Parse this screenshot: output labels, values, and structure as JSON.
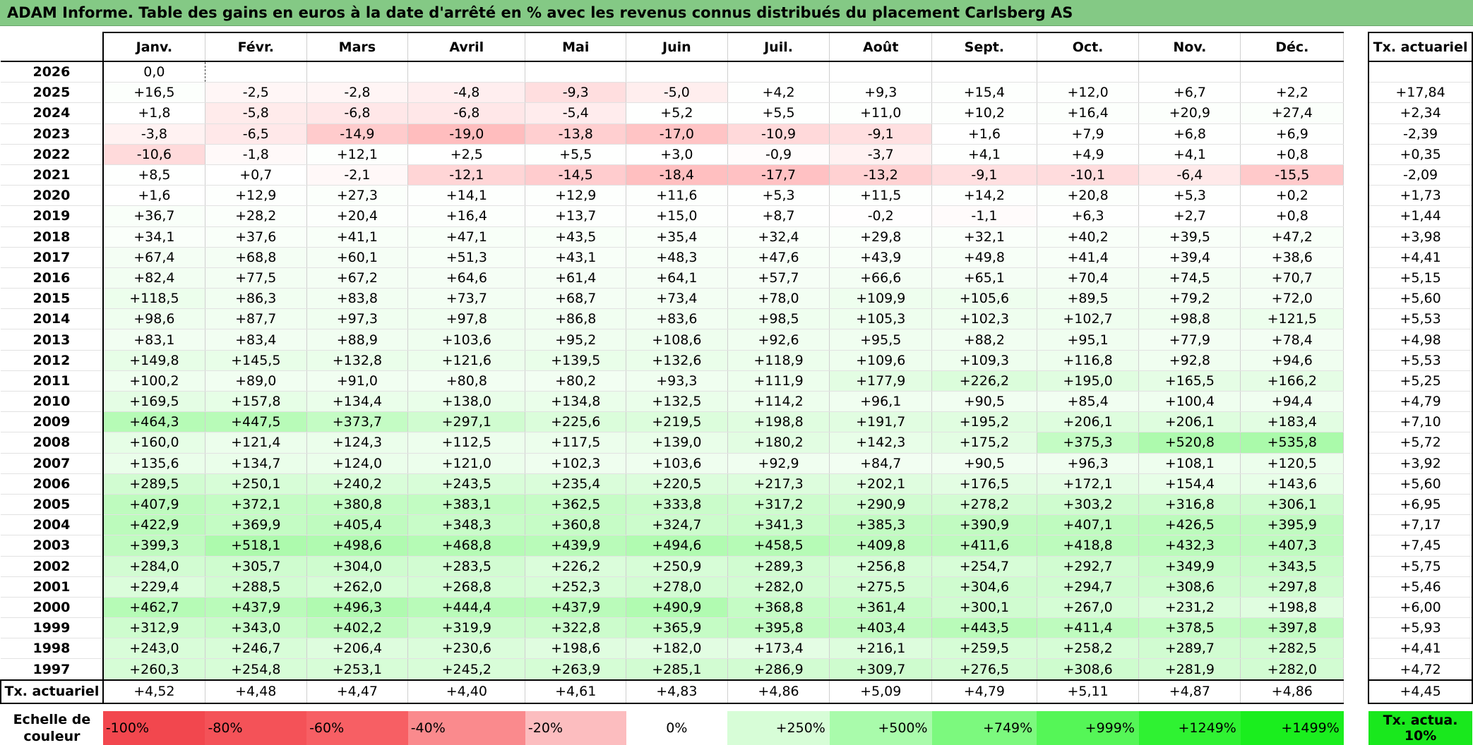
{
  "title": "ADAM Informe. Table des gains en euros à la date d'arrêté en % avec les revenus connus distribués du placement Carlsberg AS",
  "months": [
    "Janv.",
    "Févr.",
    "Mars",
    "Avril",
    "Mai",
    "Juin",
    "Juil.",
    "Août",
    "Sept.",
    "Oct.",
    "Nov.",
    "Déc."
  ],
  "actuarial_header": "Tx. actuariel",
  "rows": [
    {
      "year": "2026",
      "values": [
        "0,0",
        "",
        "",
        "",
        "",
        "",
        "",
        "",
        "",
        "",
        "",
        ""
      ],
      "rate": ""
    },
    {
      "year": "2025",
      "values": [
        "+16,5",
        "-2,5",
        "-2,8",
        "-4,8",
        "-9,3",
        "-5,0",
        "+4,2",
        "+9,3",
        "+15,4",
        "+12,0",
        "+6,7",
        "+2,2"
      ],
      "rate": "+17,84"
    },
    {
      "year": "2024",
      "values": [
        "+1,8",
        "-5,8",
        "-6,8",
        "-6,8",
        "-5,4",
        "+5,2",
        "+5,5",
        "+11,0",
        "+10,2",
        "+16,4",
        "+20,9",
        "+27,4"
      ],
      "rate": "+2,34"
    },
    {
      "year": "2023",
      "values": [
        "-3,8",
        "-6,5",
        "-14,9",
        "-19,0",
        "-13,8",
        "-17,0",
        "-10,9",
        "-9,1",
        "+1,6",
        "+7,9",
        "+6,8",
        "+6,9"
      ],
      "rate": "-2,39"
    },
    {
      "year": "2022",
      "values": [
        "-10,6",
        "-1,8",
        "+12,1",
        "+2,5",
        "+5,5",
        "+3,0",
        "-0,9",
        "-3,7",
        "+4,1",
        "+4,9",
        "+4,1",
        "+0,8"
      ],
      "rate": "+0,35"
    },
    {
      "year": "2021",
      "values": [
        "+8,5",
        "+0,7",
        "-2,1",
        "-12,1",
        "-14,5",
        "-18,4",
        "-17,7",
        "-13,2",
        "-9,1",
        "-10,1",
        "-6,4",
        "-15,5"
      ],
      "rate": "-2,09"
    },
    {
      "year": "2020",
      "values": [
        "+1,6",
        "+12,9",
        "+27,3",
        "+14,1",
        "+12,9",
        "+11,6",
        "+5,3",
        "+11,5",
        "+14,2",
        "+20,8",
        "+5,3",
        "+0,2"
      ],
      "rate": "+1,73"
    },
    {
      "year": "2019",
      "values": [
        "+36,7",
        "+28,2",
        "+20,4",
        "+16,4",
        "+13,7",
        "+15,0",
        "+8,7",
        "-0,2",
        "-1,1",
        "+6,3",
        "+2,7",
        "+0,8"
      ],
      "rate": "+1,44"
    },
    {
      "year": "2018",
      "values": [
        "+34,1",
        "+37,6",
        "+41,1",
        "+47,1",
        "+43,5",
        "+35,4",
        "+32,4",
        "+29,8",
        "+32,1",
        "+40,2",
        "+39,5",
        "+47,2"
      ],
      "rate": "+3,98"
    },
    {
      "year": "2017",
      "values": [
        "+67,4",
        "+68,8",
        "+60,1",
        "+51,3",
        "+43,1",
        "+48,3",
        "+47,6",
        "+43,9",
        "+49,8",
        "+41,4",
        "+39,4",
        "+38,6"
      ],
      "rate": "+4,41"
    },
    {
      "year": "2016",
      "values": [
        "+82,4",
        "+77,5",
        "+67,2",
        "+64,6",
        "+61,4",
        "+64,1",
        "+57,7",
        "+66,6",
        "+65,1",
        "+70,4",
        "+74,5",
        "+70,7"
      ],
      "rate": "+5,15"
    },
    {
      "year": "2015",
      "values": [
        "+118,5",
        "+86,3",
        "+83,8",
        "+73,7",
        "+68,7",
        "+73,4",
        "+78,0",
        "+109,9",
        "+105,6",
        "+89,5",
        "+79,2",
        "+72,0"
      ],
      "rate": "+5,60"
    },
    {
      "year": "2014",
      "values": [
        "+98,6",
        "+87,7",
        "+97,3",
        "+97,8",
        "+86,8",
        "+83,6",
        "+98,5",
        "+105,3",
        "+102,3",
        "+102,7",
        "+98,8",
        "+121,5"
      ],
      "rate": "+5,53"
    },
    {
      "year": "2013",
      "values": [
        "+83,1",
        "+83,4",
        "+88,9",
        "+103,6",
        "+95,2",
        "+108,6",
        "+92,6",
        "+95,5",
        "+88,2",
        "+95,1",
        "+77,9",
        "+78,4"
      ],
      "rate": "+4,98"
    },
    {
      "year": "2012",
      "values": [
        "+149,8",
        "+145,5",
        "+132,8",
        "+121,6",
        "+139,5",
        "+132,6",
        "+118,9",
        "+109,6",
        "+109,3",
        "+116,8",
        "+92,8",
        "+94,6"
      ],
      "rate": "+5,53"
    },
    {
      "year": "2011",
      "values": [
        "+100,2",
        "+89,0",
        "+91,0",
        "+80,8",
        "+80,2",
        "+93,3",
        "+111,9",
        "+177,9",
        "+226,2",
        "+195,0",
        "+165,5",
        "+166,2"
      ],
      "rate": "+5,25"
    },
    {
      "year": "2010",
      "values": [
        "+169,5",
        "+157,8",
        "+134,4",
        "+138,0",
        "+134,8",
        "+132,5",
        "+114,2",
        "+96,1",
        "+90,5",
        "+85,4",
        "+100,4",
        "+94,4"
      ],
      "rate": "+4,79"
    },
    {
      "year": "2009",
      "values": [
        "+464,3",
        "+447,5",
        "+373,7",
        "+297,1",
        "+225,6",
        "+219,5",
        "+198,8",
        "+191,7",
        "+195,2",
        "+206,1",
        "+206,1",
        "+183,4"
      ],
      "rate": "+7,10"
    },
    {
      "year": "2008",
      "values": [
        "+160,0",
        "+121,4",
        "+124,3",
        "+112,5",
        "+117,5",
        "+139,0",
        "+180,2",
        "+142,3",
        "+175,2",
        "+375,3",
        "+520,8",
        "+535,8"
      ],
      "rate": "+5,72"
    },
    {
      "year": "2007",
      "values": [
        "+135,6",
        "+134,7",
        "+124,0",
        "+121,0",
        "+102,3",
        "+103,6",
        "+92,9",
        "+84,7",
        "+90,5",
        "+96,3",
        "+108,1",
        "+120,5"
      ],
      "rate": "+3,92"
    },
    {
      "year": "2006",
      "values": [
        "+289,5",
        "+250,1",
        "+240,2",
        "+243,5",
        "+235,4",
        "+220,5",
        "+217,3",
        "+202,1",
        "+176,5",
        "+172,1",
        "+154,4",
        "+143,6"
      ],
      "rate": "+5,60"
    },
    {
      "year": "2005",
      "values": [
        "+407,9",
        "+372,1",
        "+380,8",
        "+383,1",
        "+362,5",
        "+333,8",
        "+317,2",
        "+290,9",
        "+278,2",
        "+303,2",
        "+316,8",
        "+306,1"
      ],
      "rate": "+6,95"
    },
    {
      "year": "2004",
      "values": [
        "+422,9",
        "+369,9",
        "+405,4",
        "+348,3",
        "+360,8",
        "+324,7",
        "+341,3",
        "+385,3",
        "+390,9",
        "+407,1",
        "+426,5",
        "+395,9"
      ],
      "rate": "+7,17"
    },
    {
      "year": "2003",
      "values": [
        "+399,3",
        "+518,1",
        "+498,6",
        "+468,8",
        "+439,9",
        "+494,6",
        "+458,5",
        "+409,8",
        "+411,6",
        "+418,8",
        "+432,3",
        "+407,3"
      ],
      "rate": "+7,45"
    },
    {
      "year": "2002",
      "values": [
        "+284,0",
        "+305,7",
        "+304,0",
        "+283,5",
        "+226,2",
        "+250,9",
        "+289,3",
        "+256,8",
        "+254,7",
        "+292,7",
        "+349,9",
        "+343,5"
      ],
      "rate": "+5,75"
    },
    {
      "year": "2001",
      "values": [
        "+229,4",
        "+288,5",
        "+262,0",
        "+268,8",
        "+252,3",
        "+278,0",
        "+282,0",
        "+275,5",
        "+304,6",
        "+294,7",
        "+308,6",
        "+297,8"
      ],
      "rate": "+5,46"
    },
    {
      "year": "2000",
      "values": [
        "+462,7",
        "+437,9",
        "+496,3",
        "+444,4",
        "+437,9",
        "+490,9",
        "+368,8",
        "+361,4",
        "+300,1",
        "+267,0",
        "+231,2",
        "+198,8"
      ],
      "rate": "+6,00"
    },
    {
      "year": "1999",
      "values": [
        "+312,9",
        "+343,0",
        "+402,2",
        "+319,9",
        "+322,8",
        "+365,9",
        "+395,8",
        "+403,4",
        "+443,5",
        "+411,4",
        "+378,5",
        "+397,8"
      ],
      "rate": "+5,93"
    },
    {
      "year": "1998",
      "values": [
        "+243,0",
        "+246,7",
        "+206,4",
        "+230,6",
        "+198,6",
        "+182,0",
        "+173,4",
        "+216,1",
        "+259,5",
        "+258,2",
        "+289,7",
        "+282,5"
      ],
      "rate": "+4,41"
    },
    {
      "year": "1997",
      "values": [
        "+260,3",
        "+254,8",
        "+253,1",
        "+245,2",
        "+263,9",
        "+285,1",
        "+286,9",
        "+309,7",
        "+276,5",
        "+308,6",
        "+281,9",
        "+282,0"
      ],
      "rate": "+4,72"
    }
  ],
  "averages": {
    "label": "Tx. actuariel",
    "values": [
      "+4,52",
      "+4,48",
      "+4,47",
      "+4,40",
      "+4,61",
      "+4,83",
      "+4,86",
      "+5,09",
      "+4,79",
      "+5,11",
      "+4,87",
      "+4,86"
    ],
    "rate": "+4,45"
  },
  "scale": {
    "label": "Echelle de couleur",
    "items": [
      {
        "text": "-100%",
        "color": "#f2474e"
      },
      {
        "text": "-80%",
        "color": "#f45258"
      },
      {
        "text": "-60%",
        "color": "#f75f64"
      },
      {
        "text": "-40%",
        "color": "#fa8a8d"
      },
      {
        "text": "-20%",
        "color": "#fcbdbf"
      },
      {
        "text": "0%",
        "color": "#ffffff"
      },
      {
        "text": "+250%",
        "color": "#d7fdd7"
      },
      {
        "text": "+500%",
        "color": "#a9fbab"
      },
      {
        "text": "+749%",
        "color": "#7cf97e"
      },
      {
        "text": "+999%",
        "color": "#55f657"
      },
      {
        "text": "+1249%",
        "color": "#2ff232"
      },
      {
        "text": "+1499%",
        "color": "#1aee1e"
      }
    ],
    "legend": "Tx. actua. 10%",
    "legend_color": "#19e81d"
  }
}
